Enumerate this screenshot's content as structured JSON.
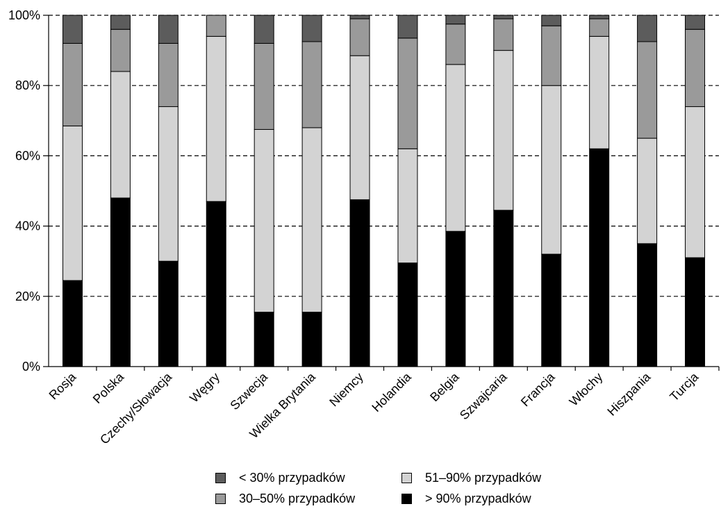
{
  "chart_data": {
    "type": "bar",
    "stacked": true,
    "categories": [
      "Rosja",
      "Polska",
      "Czechy/Słowacja",
      "Węgry",
      "Szwecja",
      "Wielka Brytania",
      "Niemcy",
      "Holandia",
      "Belgia",
      "Szwajcaria",
      "Francja",
      "Włochy",
      "Hiszpania",
      "Turcja"
    ],
    "series": [
      {
        "name": "> 90% przypadków",
        "color": "#000000",
        "values": [
          24.5,
          48,
          30,
          47,
          15.5,
          15.5,
          47.5,
          29.5,
          38.5,
          44.5,
          32,
          62,
          35,
          31
        ]
      },
      {
        "name": "51–90% przypadków",
        "color": "#d3d3d3",
        "values": [
          44,
          36,
          44,
          47,
          52,
          52.5,
          41,
          32.5,
          47.5,
          45.5,
          48,
          32,
          30,
          43
        ]
      },
      {
        "name": "30–50% przypadków",
        "color": "#9a9a9a",
        "values": [
          23.5,
          12,
          18,
          6,
          24.5,
          24.5,
          10.5,
          31.5,
          11.5,
          9,
          17,
          5,
          27.5,
          22
        ]
      },
      {
        "name": "< 30% przypadków",
        "color": "#5c5c5c",
        "values": [
          8,
          4,
          8,
          0,
          8,
          7.5,
          1,
          6.5,
          2.5,
          1,
          3,
          1,
          7.5,
          4
        ]
      }
    ],
    "ylim": [
      0,
      100
    ],
    "yticks": [
      "0%",
      "20%",
      "40%",
      "60%",
      "80%",
      "100%"
    ],
    "grid": "horizontal dashed",
    "legend_position": "bottom",
    "legend_order": [
      "< 30% przypadków",
      "51–90% przypadków",
      "30–50% przypadków",
      "> 90% przypadków"
    ]
  }
}
